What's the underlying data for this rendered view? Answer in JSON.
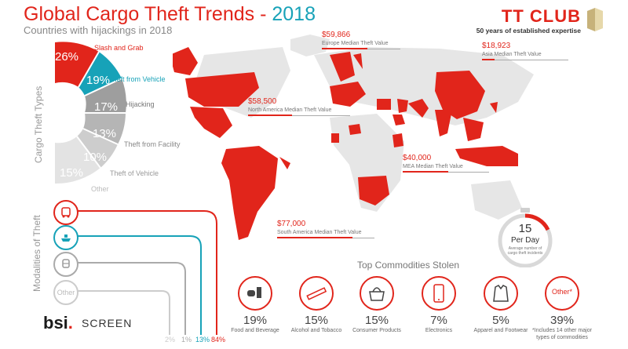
{
  "header": {
    "title_main": "Global Cargo Theft Trends",
    "title_sep": " - ",
    "title_year": "2018",
    "subtitle": "Countries with hijackings in 2018",
    "logo_name": "TT CLUB",
    "logo_tagline": "50 years of established expertise"
  },
  "map": {
    "annotations": [
      {
        "value": "$59,866",
        "label": "Europe Median Theft Value"
      },
      {
        "value": "$18,923",
        "label": "Asia Median Theft Value"
      },
      {
        "value": "$58,500",
        "label": "North America Median Theft Value"
      },
      {
        "value": "$40,000",
        "label": "MEA Median Theft Value"
      },
      {
        "value": "$77,000",
        "label": "South America Median Theft Value"
      }
    ]
  },
  "cargo_theft_types": {
    "axis_label": "Cargo Theft Types",
    "segments": [
      {
        "percent": "26%",
        "name": "Slash and Grab",
        "color": "#e1251b"
      },
      {
        "percent": "19%",
        "name": "Theft from Vehicle",
        "color": "#17a2b8"
      },
      {
        "percent": "17%",
        "name": "Hijacking",
        "color": "#9e9e9e"
      },
      {
        "percent": "13%",
        "name": "Theft from Facility",
        "color": "#b5b5b5"
      },
      {
        "percent": "10%",
        "name": "Theft of Vehicle",
        "color": "#cdcdcd"
      },
      {
        "percent": "15%",
        "name": "Other",
        "color": "#e3e3e3"
      }
    ]
  },
  "modalities": {
    "axis_label": "Modalities of Theft",
    "items": [
      {
        "icon": "truck-icon",
        "percent": "84%",
        "color": "#e1251b"
      },
      {
        "icon": "ship-icon",
        "percent": "13%",
        "color": "#17a2b8"
      },
      {
        "icon": "train-icon",
        "percent": "1%",
        "color": "#aaaaaa"
      },
      {
        "icon": "other-icon",
        "label": "Other",
        "percent": "2%",
        "color": "#cccccc"
      }
    ]
  },
  "rate": {
    "number": "15",
    "unit": "Per Day",
    "description": "Average number of cargo theft incidents"
  },
  "commodities": {
    "title": "Top Commodities Stolen",
    "items": [
      {
        "icon": "food-icon",
        "value": "19%",
        "name": "Food and Beverage"
      },
      {
        "icon": "tobacco-icon",
        "value": "15%",
        "name": "Alcohol and Tobacco"
      },
      {
        "icon": "handbag-icon",
        "value": "15%",
        "name": "Consumer Products"
      },
      {
        "icon": "phone-icon",
        "value": "7%",
        "name": "Electronics"
      },
      {
        "icon": "jacket-icon",
        "value": "5%",
        "name": "Apparel and Footwear"
      },
      {
        "icon_text": "Other*",
        "value": "39%",
        "name": "*Includes 14 other major types of commodities"
      }
    ]
  },
  "footer": {
    "brand": "bsi",
    "brand_dot": ".",
    "product": "SCREEN"
  }
}
